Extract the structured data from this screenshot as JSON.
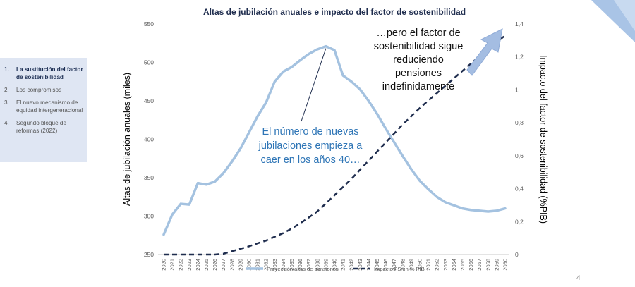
{
  "sidebar": {
    "items": [
      {
        "num": "1.",
        "label": "La sustitución del factor de sostenibilidad",
        "active": true
      },
      {
        "num": "2.",
        "label": "Los compromisos",
        "active": false
      },
      {
        "num": "3.",
        "label": "El nuevo mecanismo de equidad intergeneracional",
        "active": false
      },
      {
        "num": "4.",
        "label": "Segundo bloque de reformas (2022)",
        "active": false
      }
    ]
  },
  "page_number": "4",
  "colors": {
    "series1": "#a4c2e0",
    "series2": "#1f2d4e",
    "annotation": "#2e75b6",
    "arrow": "#a4bde2"
  },
  "chart_data": {
    "type": "line",
    "title": "Altas de jubilación anuales e impacto del factor de sostenibilidad",
    "ylabel": "Altas de jubilación anuales (miles)",
    "y2label": "Impacto del factor de sostenibilidad (%PIB)",
    "ylim": [
      250,
      550
    ],
    "y2lim": [
      0,
      1.4
    ],
    "yticks": [
      "250",
      "300",
      "350",
      "400",
      "450",
      "500",
      "550"
    ],
    "y2ticks": [
      "0",
      "0,2",
      "0,4",
      "0,6",
      "0,8",
      "1",
      "1,2",
      "1,4"
    ],
    "categories": [
      "2020",
      "2021",
      "2022",
      "2023",
      "2024",
      "2025",
      "2026",
      "2027",
      "2028",
      "2029",
      "2030",
      "2031",
      "2032",
      "2033",
      "2034",
      "2035",
      "2036",
      "2037",
      "2038",
      "2039",
      "2040",
      "2041",
      "2042",
      "2043",
      "2044",
      "2045",
      "2046",
      "2047",
      "2048",
      "2049",
      "2050",
      "2051",
      "2052",
      "2053",
      "2054",
      "2055",
      "2056",
      "2057",
      "2058",
      "2059",
      "2060"
    ],
    "series": [
      {
        "name": "Proyección altas de pensiones",
        "axis": "left",
        "style": "solid",
        "values": [
          276,
          302,
          316,
          315,
          343,
          341,
          345,
          356,
          371,
          388,
          409,
          430,
          448,
          475,
          488,
          494,
          503,
          511,
          517,
          521,
          516,
          483,
          475,
          465,
          450,
          433,
          414,
          396,
          378,
          361,
          346,
          335,
          325,
          318,
          314,
          310,
          308,
          307,
          306,
          307,
          310
        ]
      },
      {
        "name": "Impacto FS en % PIB",
        "axis": "right",
        "style": "dashed",
        "values": [
          0,
          0,
          0,
          0,
          0,
          0,
          0,
          0.005,
          0.02,
          0.035,
          0.05,
          0.068,
          0.085,
          0.108,
          0.13,
          0.158,
          0.19,
          0.225,
          0.262,
          0.31,
          0.36,
          0.41,
          0.46,
          0.515,
          0.57,
          0.625,
          0.68,
          0.735,
          0.79,
          0.84,
          0.89,
          0.935,
          0.98,
          1.025,
          1.07,
          1.115,
          1.16,
          1.205,
          1.25,
          1.29,
          1.33
        ]
      }
    ],
    "annotations": [
      {
        "lines": [
          "El número de nuevas",
          "jubilaciones empieza a",
          "caer en los años 40…"
        ],
        "color": "blue"
      },
      {
        "lines": [
          "…pero el factor de",
          "sostenibilidad sigue",
          "reduciendo",
          "pensiones",
          "indefinidamente"
        ],
        "color": "black"
      }
    ],
    "legend_position": "bottom",
    "grid": false
  }
}
